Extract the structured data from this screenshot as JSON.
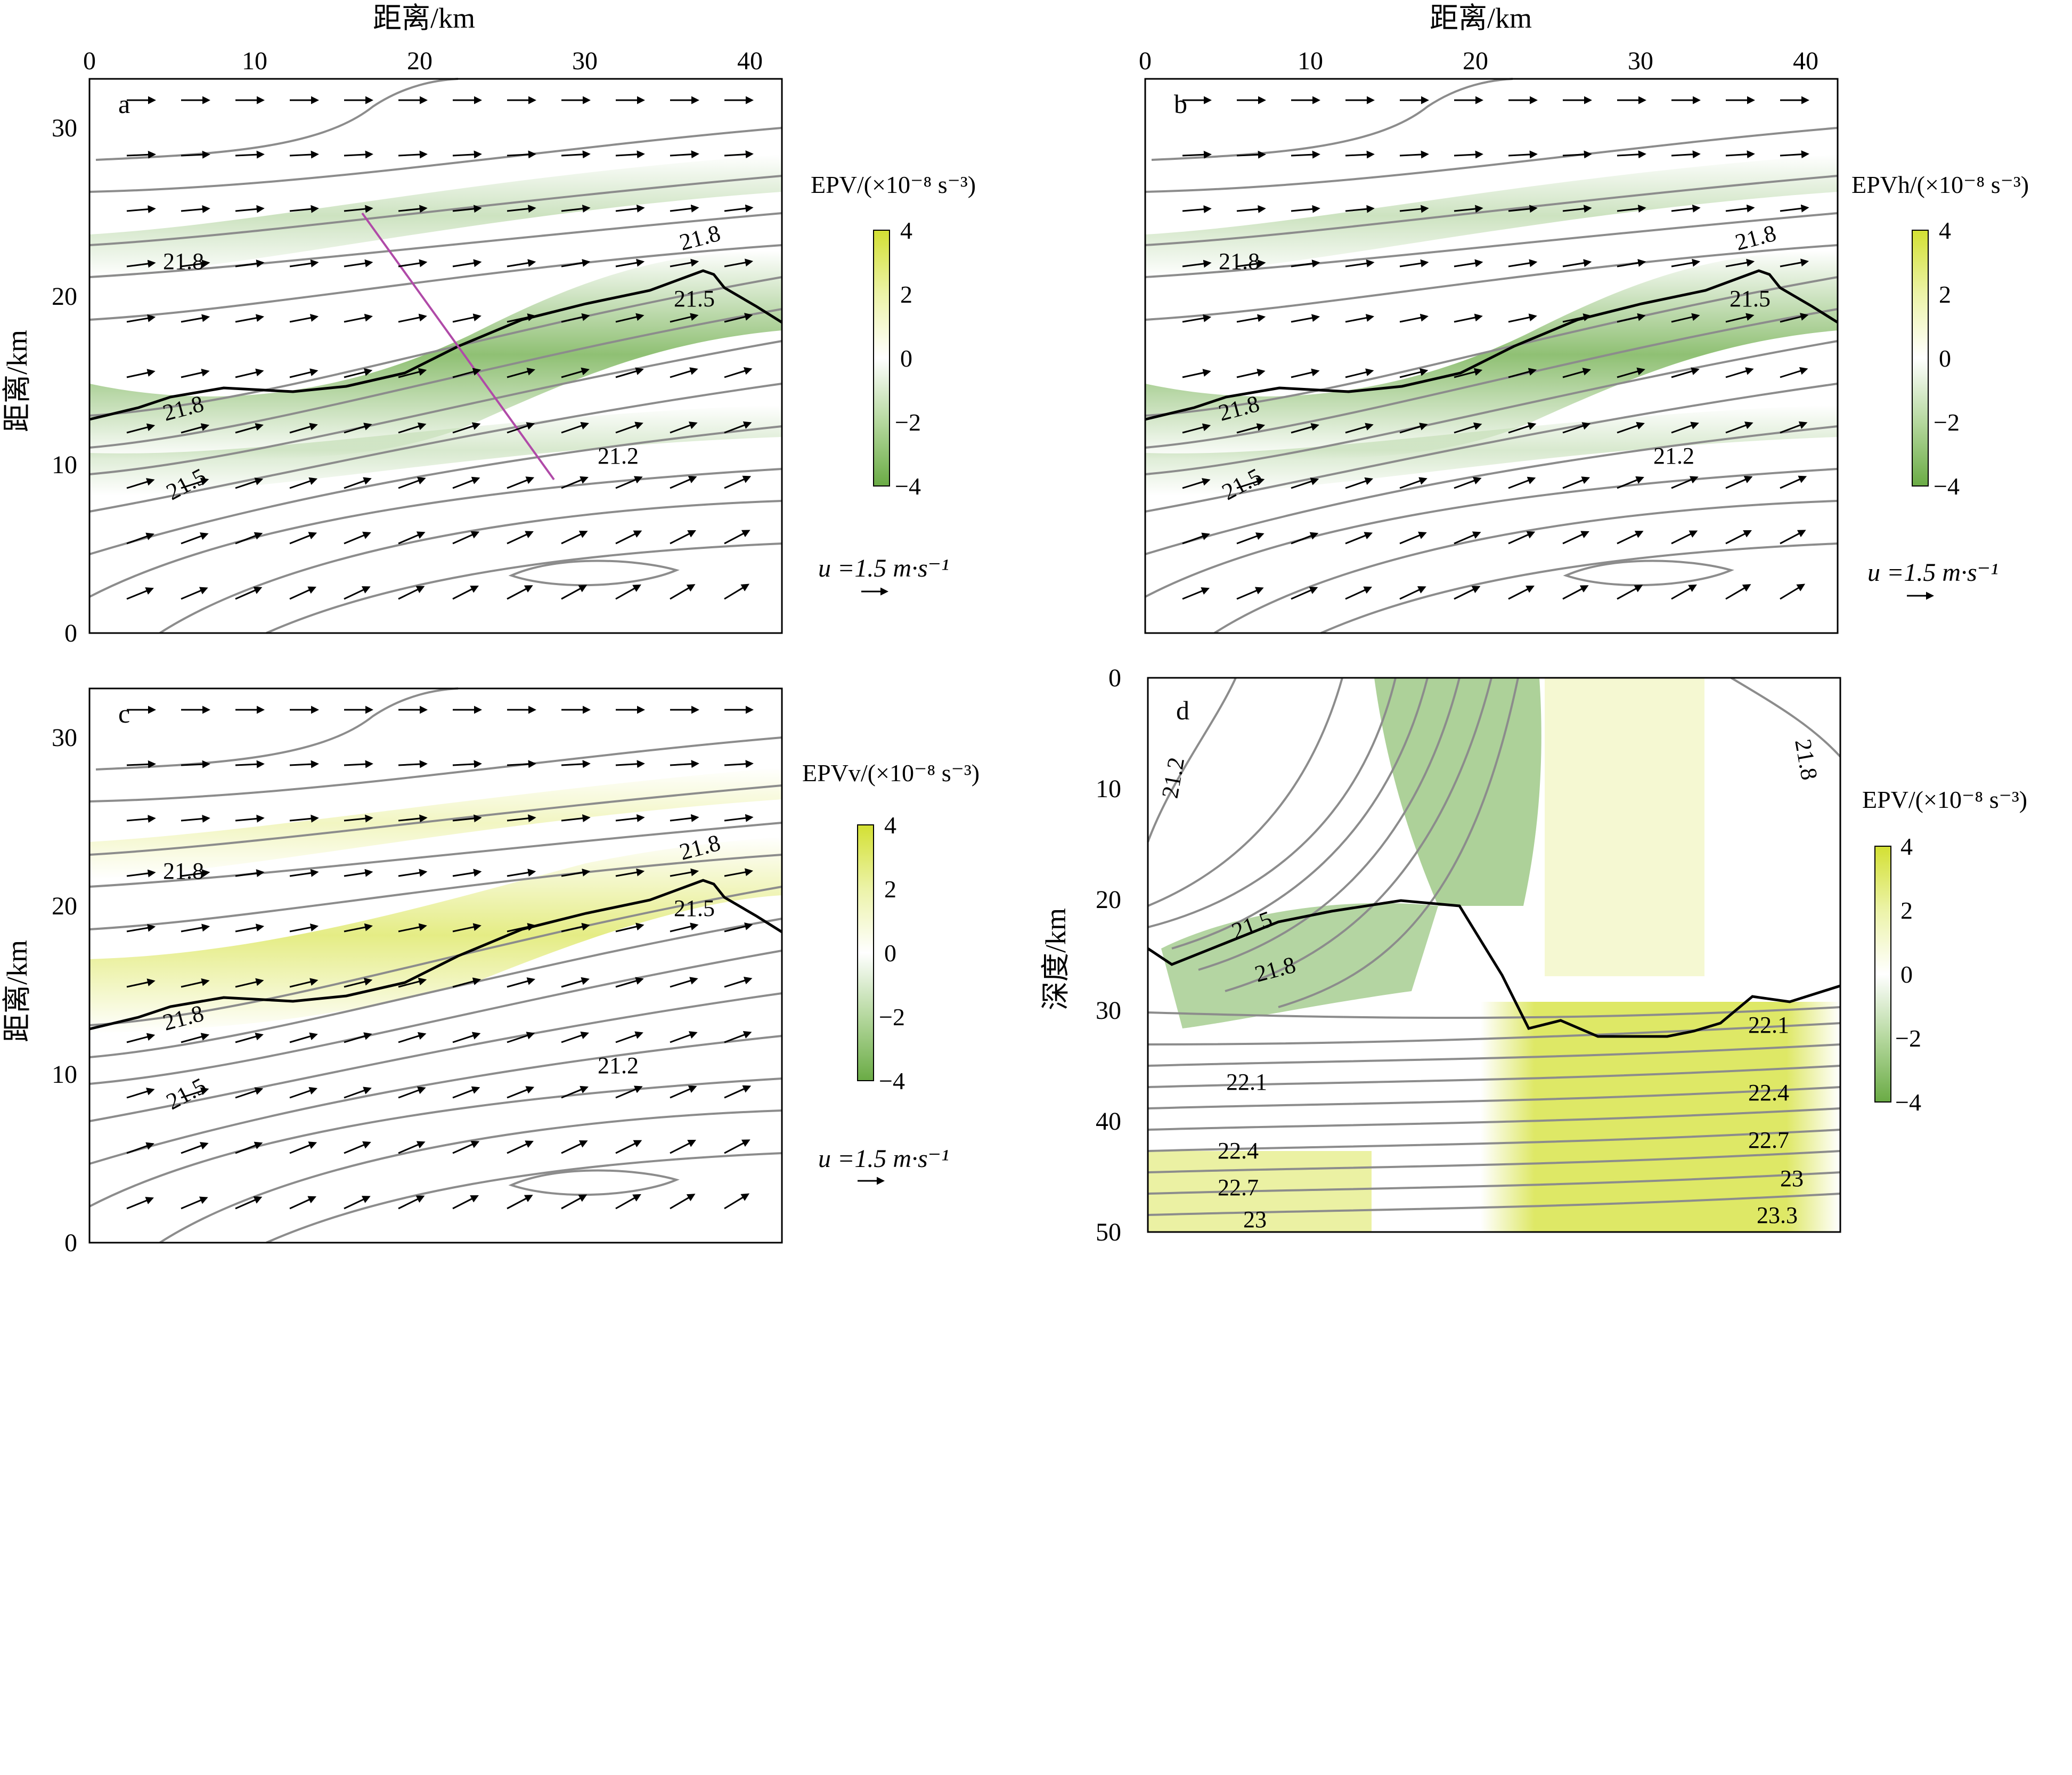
{
  "figure": {
    "panels": [
      {
        "id": "a",
        "letter": "a",
        "x_title": "距离/km",
        "y_title": "距离/km",
        "x_ticks": [
          "0",
          "10",
          "20",
          "30",
          "40"
        ],
        "y_ticks": [
          "0",
          "10",
          "20",
          "30"
        ],
        "colorbar": {
          "title": "EPV/(×10⁻⁸ s⁻³)",
          "ticks": [
            "4",
            "2",
            "0",
            "−2",
            "−4"
          ]
        },
        "reference_vector": "u =1.5 m·s⁻¹",
        "contour_labels": [
          "21.8",
          "21.8",
          "21.5",
          "21.8",
          "21.5",
          "21.2"
        ],
        "transect_line": true
      },
      {
        "id": "b",
        "letter": "b",
        "x_title": "距离/km",
        "y_title": "",
        "x_ticks": [
          "0",
          "10",
          "20",
          "30",
          "40"
        ],
        "y_ticks": [],
        "colorbar": {
          "title": "EPVh/(×10⁻⁸ s⁻³)",
          "ticks": [
            "4",
            "2",
            "0",
            "−2",
            "−4"
          ]
        },
        "reference_vector": "u =1.5 m·s⁻¹",
        "contour_labels": [
          "21.8",
          "21.8",
          "21.5",
          "21.8",
          "21.5",
          "21.2"
        ]
      },
      {
        "id": "c",
        "letter": "c",
        "x_title": "",
        "y_title": "距离/km",
        "x_ticks": [],
        "y_ticks": [
          "0",
          "10",
          "20",
          "30"
        ],
        "colorbar": {
          "title": "EPVv/(×10⁻⁸ s⁻³)",
          "ticks": [
            "4",
            "2",
            "0",
            "−2",
            "−4"
          ]
        },
        "reference_vector": "u =1.5 m·s⁻¹",
        "contour_labels": [
          "21.8",
          "21.8",
          "21.5",
          "21.8",
          "21.5",
          "21.2"
        ]
      },
      {
        "id": "d",
        "letter": "d",
        "x_title": "",
        "y_title": "深度/km",
        "x_ticks": [],
        "y_ticks": [
          "0",
          "10",
          "20",
          "30",
          "40",
          "50"
        ],
        "colorbar": {
          "title": "EPV/(×10⁻⁸ s⁻³)",
          "ticks": [
            "4",
            "2",
            "0",
            "−2",
            "−4"
          ]
        },
        "contour_labels": [
          "21.2",
          "21.8",
          "21.5",
          "21.8",
          "22.1",
          "22.1",
          "22.4",
          "22.4",
          "22.7",
          "22.7",
          "23",
          "23",
          "23.3"
        ]
      }
    ]
  },
  "chart_data": [
    {
      "panel": "a",
      "type": "heatmap",
      "quantity": "EPV",
      "xlim": [
        0,
        42
      ],
      "ylim": [
        0,
        33
      ],
      "color_range": [
        -4,
        4
      ],
      "colormap": {
        "low": "#6aab45",
        "mid": "#ffffff",
        "high": "#d3e033"
      },
      "density_contour_values": [
        21.2,
        21.5,
        21.8
      ],
      "front_line": [
        [
          0,
          12.8
        ],
        [
          7,
          14.7
        ],
        [
          12,
          14.4
        ],
        [
          17,
          15.2
        ],
        [
          22,
          17.4
        ],
        [
          27,
          19.2
        ],
        [
          33,
          20.6
        ],
        [
          36,
          21.8
        ],
        [
          37,
          21.6
        ],
        [
          42,
          18.6
        ]
      ],
      "transect": {
        "from": [
          16.5,
          25.0
        ],
        "to": [
          28.0,
          9.2
        ]
      },
      "reference_vector_speed": 1.5
    },
    {
      "panel": "b",
      "type": "heatmap",
      "quantity": "EPVh",
      "xlim": [
        0,
        42
      ],
      "ylim": [
        0,
        33
      ],
      "color_range": [
        -4,
        4
      ],
      "density_contour_values": [
        21.2,
        21.5,
        21.8
      ],
      "reference_vector_speed": 1.5
    },
    {
      "panel": "c",
      "type": "heatmap",
      "quantity": "EPVv",
      "xlim": [
        0,
        42
      ],
      "ylim": [
        0,
        33
      ],
      "color_range": [
        -4,
        4
      ],
      "density_contour_values": [
        21.2,
        21.5,
        21.8
      ],
      "reference_vector_speed": 1.5
    },
    {
      "panel": "d",
      "type": "heatmap",
      "quantity": "EPV",
      "ylim": [
        50,
        0
      ],
      "color_range": [
        -4,
        4
      ],
      "density_contour_values": [
        21.2,
        21.5,
        21.8,
        22.1,
        22.4,
        22.7,
        23,
        23.3
      ]
    }
  ]
}
